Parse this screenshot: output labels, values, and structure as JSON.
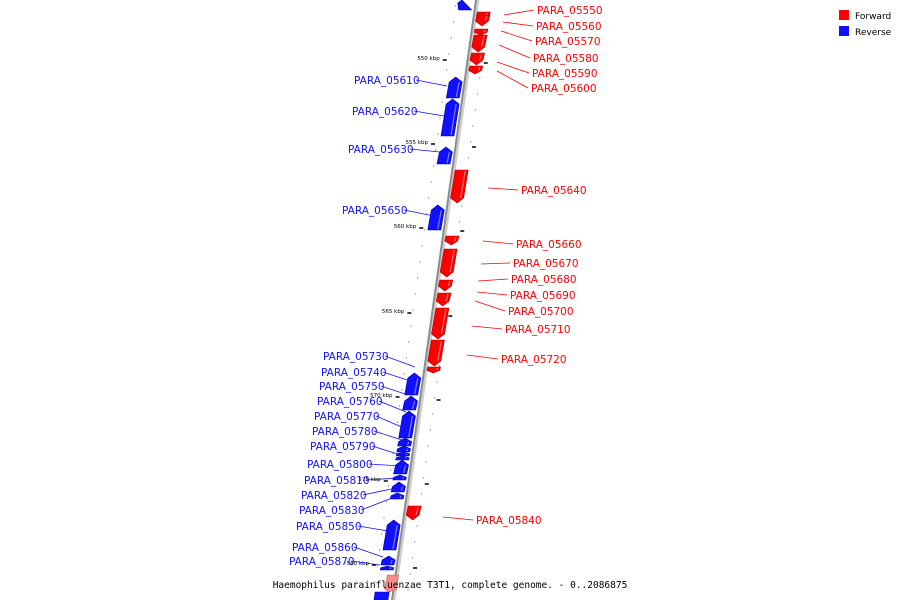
{
  "colors": {
    "forward": "#ff0000",
    "reverse": "#1010ff",
    "forward_shade": "#b30000",
    "reverse_shade": "#0000a8",
    "axis": "#8c8c8c"
  },
  "legend": {
    "forward_label": "Forward",
    "reverse_label": "Reverse"
  },
  "caption": "Haemophilus parainfluenzae T3T1, complete genome. - 0..2086875",
  "ticks": [
    "550 kbp",
    "555 kbp",
    "560 kbp",
    "565 kbp",
    "570 kbp",
    "575 kbp",
    "580 kbp"
  ],
  "genes": [
    {
      "label": "PARA_05550",
      "strand": "forward"
    },
    {
      "label": "PARA_05560",
      "strand": "forward"
    },
    {
      "label": "PARA_05570",
      "strand": "forward"
    },
    {
      "label": "PARA_05580",
      "strand": "forward"
    },
    {
      "label": "PARA_05590",
      "strand": "forward"
    },
    {
      "label": "PARA_05600",
      "strand": "forward"
    },
    {
      "label": "PARA_05610",
      "strand": "reverse"
    },
    {
      "label": "PARA_05620",
      "strand": "reverse"
    },
    {
      "label": "PARA_05630",
      "strand": "reverse"
    },
    {
      "label": "PARA_05640",
      "strand": "forward"
    },
    {
      "label": "PARA_05650",
      "strand": "reverse"
    },
    {
      "label": "PARA_05660",
      "strand": "forward"
    },
    {
      "label": "PARA_05670",
      "strand": "forward"
    },
    {
      "label": "PARA_05680",
      "strand": "forward"
    },
    {
      "label": "PARA_05690",
      "strand": "forward"
    },
    {
      "label": "PARA_05700",
      "strand": "forward"
    },
    {
      "label": "PARA_05710",
      "strand": "forward"
    },
    {
      "label": "PARA_05720",
      "strand": "forward"
    },
    {
      "label": "PARA_05730",
      "strand": "reverse"
    },
    {
      "label": "PARA_05740",
      "strand": "reverse"
    },
    {
      "label": "PARA_05750",
      "strand": "reverse"
    },
    {
      "label": "PARA_05760",
      "strand": "reverse"
    },
    {
      "label": "PARA_05770",
      "strand": "reverse"
    },
    {
      "label": "PARA_05780",
      "strand": "reverse"
    },
    {
      "label": "PARA_05790",
      "strand": "reverse"
    },
    {
      "label": "PARA_05800",
      "strand": "reverse"
    },
    {
      "label": "PARA_05810",
      "strand": "reverse"
    },
    {
      "label": "PARA_05820",
      "strand": "reverse"
    },
    {
      "label": "PARA_05830",
      "strand": "reverse"
    },
    {
      "label": "PARA_05840",
      "strand": "forward"
    },
    {
      "label": "PARA_05850",
      "strand": "reverse"
    },
    {
      "label": "PARA_05860",
      "strand": "reverse"
    },
    {
      "label": "PARA_05870",
      "strand": "reverse"
    }
  ]
}
